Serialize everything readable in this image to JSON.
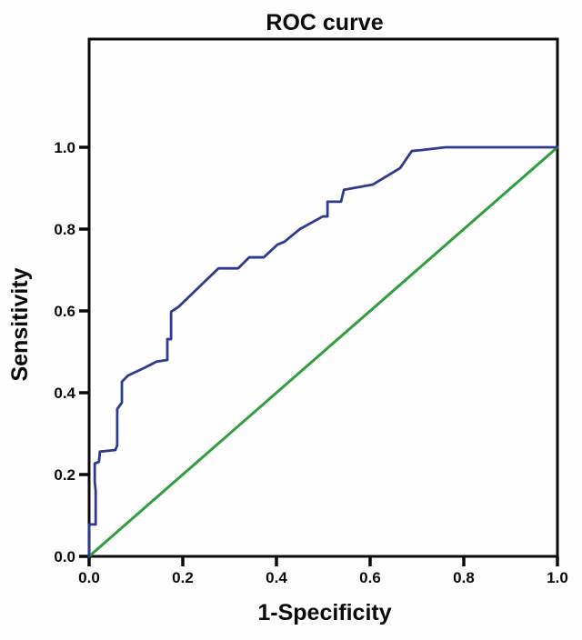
{
  "chart_data": {
    "type": "line",
    "title": "ROC curve",
    "xlabel": "1-Specificity",
    "ylabel": "Sensitivity",
    "xlim": [
      0.0,
      1.0
    ],
    "ylim": [
      0.0,
      1.0
    ],
    "x_ticks": [
      "0.0",
      "0.2",
      "0.4",
      "0.6",
      "0.8",
      "1.0"
    ],
    "y_ticks": [
      "0.0",
      "0.2",
      "0.4",
      "0.6",
      "0.8",
      "1.0"
    ],
    "grid": false,
    "legend": "none",
    "colors": {
      "axis": "#0a0a0a",
      "roc_curve": "#2e3a90",
      "reference_line": "#2f9e3e",
      "background": "#fefefe"
    },
    "series": [
      {
        "name": "reference-diagonal",
        "color": "#2f9e3e",
        "width": 3,
        "points": [
          [
            0.0,
            0.0
          ],
          [
            1.0,
            1.0
          ]
        ]
      },
      {
        "name": "roc-curve",
        "color": "#2e3a90",
        "width": 2.8,
        "points": [
          [
            0.0,
            0.0
          ],
          [
            0.0,
            0.078
          ],
          [
            0.014,
            0.078
          ],
          [
            0.014,
            0.16
          ],
          [
            0.012,
            0.182
          ],
          [
            0.012,
            0.227
          ],
          [
            0.021,
            0.231
          ],
          [
            0.023,
            0.256
          ],
          [
            0.056,
            0.26
          ],
          [
            0.06,
            0.271
          ],
          [
            0.06,
            0.36
          ],
          [
            0.07,
            0.376
          ],
          [
            0.07,
            0.427
          ],
          [
            0.083,
            0.442
          ],
          [
            0.12,
            0.462
          ],
          [
            0.144,
            0.476
          ],
          [
            0.167,
            0.48
          ],
          [
            0.167,
            0.531
          ],
          [
            0.175,
            0.531
          ],
          [
            0.175,
            0.598
          ],
          [
            0.192,
            0.611
          ],
          [
            0.276,
            0.704
          ],
          [
            0.318,
            0.704
          ],
          [
            0.342,
            0.731
          ],
          [
            0.373,
            0.731
          ],
          [
            0.402,
            0.762
          ],
          [
            0.417,
            0.769
          ],
          [
            0.45,
            0.8
          ],
          [
            0.499,
            0.831
          ],
          [
            0.509,
            0.831
          ],
          [
            0.509,
            0.867
          ],
          [
            0.538,
            0.867
          ],
          [
            0.544,
            0.896
          ],
          [
            0.563,
            0.9
          ],
          [
            0.606,
            0.909
          ],
          [
            0.664,
            0.949
          ],
          [
            0.689,
            0.991
          ],
          [
            0.709,
            0.993
          ],
          [
            0.761,
            1.0
          ],
          [
            1.0,
            1.0
          ]
        ]
      }
    ]
  }
}
